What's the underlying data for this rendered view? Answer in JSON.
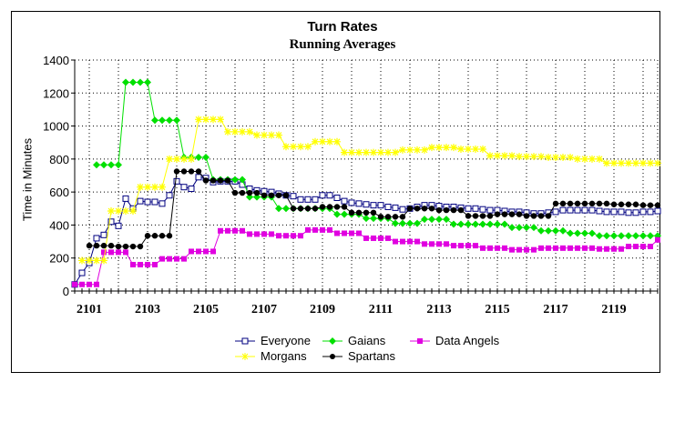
{
  "chart_data": {
    "type": "line",
    "title": "Turn Rates",
    "subtitle": "Running Averages",
    "xlabel": "",
    "ylabel": "Time in Minutes",
    "ylim": [
      0,
      1400
    ],
    "yticks": [
      "0",
      "200",
      "400",
      "600",
      "800",
      "1000",
      "1200",
      "1400"
    ],
    "xtick_labels": [
      "2101",
      "2103",
      "2105",
      "2107",
      "2109",
      "2111",
      "2113",
      "2115",
      "2117",
      "2119"
    ],
    "x_start_year": 2100.5,
    "points_per_year": 4,
    "grid": true,
    "legend_position": "bottom",
    "series": [
      {
        "name": "Everyone",
        "color": "#000080",
        "marker": "square-open",
        "values": [
          40,
          110,
          170,
          320,
          340,
          420,
          395,
          560,
          500,
          545,
          540,
          540,
          530,
          580,
          665,
          630,
          620,
          690,
          685,
          660,
          665,
          665,
          665,
          645,
          620,
          610,
          605,
          600,
          590,
          580,
          575,
          555,
          555,
          555,
          580,
          580,
          565,
          545,
          535,
          530,
          525,
          520,
          520,
          510,
          505,
          495,
          500,
          510,
          520,
          520,
          515,
          510,
          510,
          505,
          500,
          500,
          495,
          490,
          490,
          485,
          480,
          480,
          475,
          470,
          470,
          475,
          480,
          490,
          490,
          490,
          490,
          490,
          485,
          480,
          480,
          480,
          475,
          475,
          480,
          480,
          485
        ]
      },
      {
        "name": "Gaians",
        "color": "#00e000",
        "marker": "diamond",
        "values": [
          null,
          null,
          null,
          765,
          765,
          765,
          765,
          1265,
          1265,
          1265,
          1265,
          1035,
          1035,
          1035,
          1035,
          810,
          810,
          810,
          810,
          675,
          675,
          675,
          675,
          675,
          570,
          570,
          570,
          570,
          500,
          500,
          500,
          500,
          500,
          500,
          500,
          500,
          465,
          465,
          465,
          465,
          440,
          440,
          440,
          440,
          410,
          410,
          410,
          410,
          435,
          435,
          435,
          435,
          405,
          405,
          405,
          405,
          405,
          405,
          405,
          405,
          385,
          385,
          385,
          385,
          365,
          365,
          365,
          365,
          350,
          350,
          350,
          350,
          335,
          335,
          335,
          335,
          335,
          335,
          335,
          335,
          335
        ]
      },
      {
        "name": "Data Angels",
        "color": "#e000e0",
        "marker": "square",
        "values": [
          40,
          40,
          40,
          40,
          235,
          235,
          235,
          235,
          160,
          160,
          160,
          160,
          195,
          195,
          195,
          195,
          240,
          240,
          240,
          240,
          365,
          365,
          365,
          365,
          345,
          345,
          345,
          345,
          335,
          335,
          335,
          335,
          370,
          370,
          370,
          370,
          350,
          350,
          350,
          350,
          320,
          320,
          320,
          320,
          300,
          300,
          300,
          300,
          285,
          285,
          285,
          285,
          275,
          275,
          275,
          275,
          260,
          260,
          260,
          260,
          250,
          250,
          250,
          250,
          260,
          260,
          260,
          260,
          260,
          260,
          260,
          260,
          255,
          255,
          255,
          255,
          270,
          270,
          270,
          270,
          310
        ]
      },
      {
        "name": "Morgans",
        "color": "#ffff00",
        "marker": "star",
        "values": [
          null,
          185,
          185,
          185,
          185,
          485,
          485,
          485,
          485,
          630,
          630,
          630,
          630,
          800,
          800,
          800,
          800,
          1040,
          1040,
          1040,
          1040,
          965,
          965,
          965,
          965,
          945,
          945,
          945,
          945,
          875,
          875,
          875,
          875,
          905,
          905,
          905,
          905,
          840,
          840,
          840,
          840,
          840,
          840,
          840,
          840,
          855,
          855,
          855,
          855,
          870,
          870,
          870,
          870,
          860,
          860,
          860,
          860,
          820,
          820,
          820,
          820,
          815,
          815,
          815,
          815,
          810,
          810,
          810,
          810,
          800,
          800,
          800,
          800,
          775,
          775,
          775,
          775,
          775,
          775,
          775,
          775
        ]
      },
      {
        "name": "Spartans",
        "color": "#000000",
        "marker": "circle",
        "values": [
          null,
          null,
          275,
          275,
          275,
          275,
          270,
          270,
          270,
          270,
          335,
          335,
          335,
          335,
          725,
          725,
          725,
          725,
          670,
          670,
          670,
          670,
          595,
          595,
          595,
          595,
          580,
          580,
          580,
          580,
          500,
          500,
          500,
          500,
          510,
          510,
          510,
          510,
          475,
          475,
          475,
          475,
          450,
          450,
          450,
          450,
          500,
          500,
          500,
          500,
          490,
          490,
          490,
          490,
          455,
          455,
          455,
          455,
          465,
          465,
          465,
          465,
          455,
          455,
          455,
          455,
          530,
          530,
          530,
          530,
          530,
          530,
          530,
          530,
          525,
          525,
          525,
          525,
          520,
          520,
          520
        ]
      }
    ]
  }
}
